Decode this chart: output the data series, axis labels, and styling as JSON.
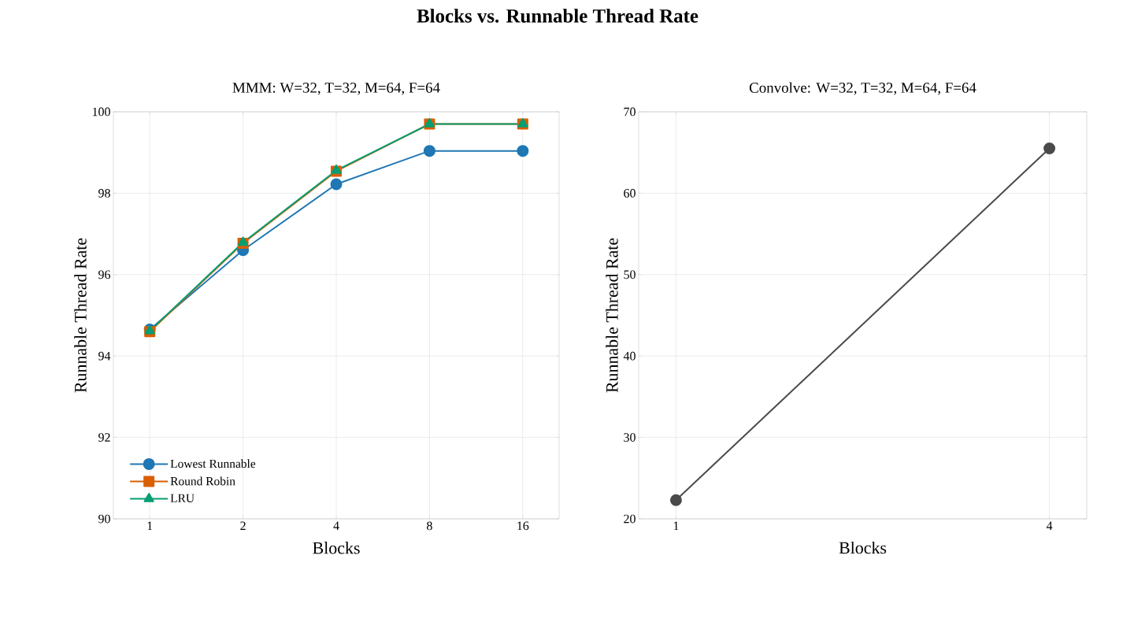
{
  "chart_data": [
    {
      "type": "line",
      "title": "Blocks vs. Runnable Thread Rate",
      "subtitle": "MMM: W=32, T=32, M=64, F=64",
      "xlabel": "Blocks",
      "ylabel": "Runnable Thread Rate",
      "categories": [
        "1",
        "2",
        "4",
        "8",
        "16"
      ],
      "ylim": [
        90,
        100
      ],
      "yticks": [
        90,
        92,
        94,
        96,
        98,
        100
      ],
      "grid": true,
      "legend": "bottom left",
      "line_style": "solid",
      "series": [
        {
          "name": "Lowest Runnable",
          "color": "#1f77b4",
          "marker": "circle",
          "values": [
            94.65,
            96.6,
            98.22,
            99.04,
            99.04
          ]
        },
        {
          "name": "Round Robin",
          "color": "#d95f02",
          "marker": "square",
          "values": [
            94.6,
            96.77,
            98.54,
            99.7,
            99.7
          ]
        },
        {
          "name": "LRU",
          "color": "#069e73",
          "marker": "triangle",
          "values": [
            94.62,
            96.79,
            98.56,
            99.7,
            99.7
          ]
        }
      ]
    },
    {
      "type": "line",
      "subtitle": "Convolve: W=32, T=32, M=64, F=64",
      "xlabel": "Blocks",
      "ylabel": "Runnable Thread Rate",
      "categories": [
        "1",
        "4"
      ],
      "ylim": [
        20,
        70
      ],
      "yticks": [
        20,
        30,
        40,
        50,
        60,
        70
      ],
      "grid": true,
      "line_style": "solid",
      "series": [
        {
          "color": "#4a4a4a",
          "marker": "circle",
          "values": [
            22.3,
            65.5
          ]
        }
      ]
    }
  ]
}
